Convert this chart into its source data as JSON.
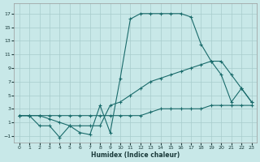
{
  "xlabel": "Humidex (Indice chaleur)",
  "xlim": [
    -0.5,
    23.5
  ],
  "ylim": [
    -2.0,
    18.5
  ],
  "xticks": [
    0,
    1,
    2,
    3,
    4,
    5,
    6,
    7,
    8,
    9,
    10,
    11,
    12,
    13,
    14,
    15,
    16,
    17,
    18,
    19,
    20,
    21,
    22,
    23
  ],
  "yticks": [
    -1,
    1,
    3,
    5,
    7,
    9,
    11,
    13,
    15,
    17
  ],
  "bg_color": "#c8e8e8",
  "grid_color": "#a8cccc",
  "line_color": "#1a6b6b",
  "line1_x": [
    0,
    1,
    2,
    3,
    4,
    5,
    6,
    7,
    8,
    9,
    10,
    11,
    12,
    13,
    14,
    15,
    16,
    17,
    18,
    19,
    20,
    21,
    22,
    23
  ],
  "line1_y": [
    2,
    2,
    2,
    2,
    2,
    2,
    2,
    2,
    2,
    2,
    2,
    2,
    2,
    2.5,
    3,
    3,
    3,
    3,
    3,
    3.5,
    3.5,
    3.5,
    3.5,
    3.5
  ],
  "line2_x": [
    0,
    1,
    2,
    3,
    4,
    5,
    6,
    7,
    8,
    9,
    10,
    11,
    12,
    13,
    14,
    15,
    16,
    17,
    18,
    19,
    20,
    21,
    22,
    23
  ],
  "line2_y": [
    2,
    2,
    0.5,
    0.5,
    -1.2,
    0.5,
    -0.5,
    -0.8,
    3.5,
    -0.5,
    7.5,
    16.2,
    17,
    17,
    17,
    17,
    17,
    16.5,
    12.5,
    10,
    8,
    4,
    6,
    4
  ],
  "line3_x": [
    0,
    1,
    2,
    3,
    4,
    5,
    6,
    7,
    8,
    9,
    10,
    11,
    12,
    13,
    14,
    15,
    16,
    17,
    18,
    19,
    20,
    21,
    22,
    23
  ],
  "line3_y": [
    2,
    2,
    2,
    1.5,
    1,
    0.5,
    0.5,
    0.5,
    0.5,
    3.5,
    4,
    5,
    6,
    7,
    7.5,
    8,
    8.5,
    9,
    9.5,
    10,
    10,
    8,
    6,
    4
  ]
}
